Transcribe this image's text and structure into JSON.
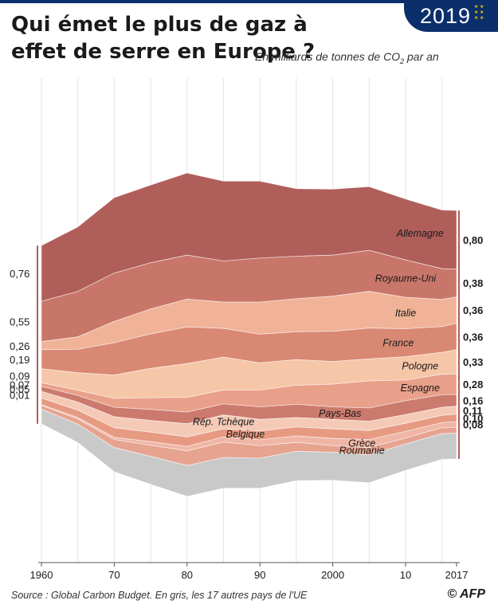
{
  "badge": {
    "year": "2019"
  },
  "header": {
    "title": "Qui émet le plus de gaz à effet de serre en Europe ?",
    "subtitle_prefix": "En milliards de tonnes de CO",
    "subtitle_sub": "2",
    "subtitle_suffix": " par an"
  },
  "footer": {
    "source": "Source : Global Carbon Budget. En gris, les 17 autres pays de l'UE",
    "credit": "© AFP"
  },
  "colors": {
    "Allemagne": "#b05e5a",
    "Royaume-Uni": "#c9766a",
    "Italie": "#f0b398",
    "France": "#d98873",
    "Pologne": "#f6c6a8",
    "Espagne": "#e9a08a",
    "Pays-Bas": "#cc7a6e",
    "Rép. Tchèque": "#f4cab7",
    "Belgique": "#e79a82",
    "Grèce": "#efb6a6",
    "Roumanie": "#e6a38f",
    "others": "#c9c9c9"
  },
  "chart_data": {
    "type": "area",
    "subtype": "streamgraph",
    "unit": "En milliards de tonnes de CO2 par an",
    "x_ticks": [
      "1960",
      "70",
      "80",
      "90",
      "2000",
      "10",
      "2017"
    ],
    "x_range": [
      1960,
      2017
    ],
    "years": [
      1960,
      1965,
      1970,
      1975,
      1980,
      1985,
      1990,
      1995,
      2000,
      2005,
      2010,
      2015,
      2017
    ],
    "series": [
      {
        "name": "Allemagne",
        "values": [
          0.76,
          0.88,
          1.03,
          1.06,
          1.12,
          1.09,
          1.05,
          0.92,
          0.9,
          0.87,
          0.83,
          0.8,
          0.8
        ]
      },
      {
        "name": "Royaume-Uni",
        "values": [
          0.55,
          0.62,
          0.66,
          0.63,
          0.6,
          0.56,
          0.6,
          0.58,
          0.56,
          0.56,
          0.51,
          0.42,
          0.38
        ]
      },
      {
        "name": "Italie",
        "values": [
          0.11,
          0.17,
          0.29,
          0.34,
          0.38,
          0.36,
          0.44,
          0.45,
          0.48,
          0.5,
          0.43,
          0.37,
          0.36
        ]
      },
      {
        "name": "France",
        "values": [
          0.26,
          0.32,
          0.44,
          0.47,
          0.5,
          0.39,
          0.39,
          0.38,
          0.41,
          0.42,
          0.38,
          0.35,
          0.36
        ]
      },
      {
        "name": "Pologne",
        "values": [
          0.19,
          0.24,
          0.32,
          0.4,
          0.46,
          0.45,
          0.37,
          0.35,
          0.31,
          0.3,
          0.32,
          0.3,
          0.33
        ]
      },
      {
        "name": "Espagne",
        "values": [
          0.05,
          0.07,
          0.12,
          0.16,
          0.2,
          0.19,
          0.23,
          0.26,
          0.31,
          0.37,
          0.28,
          0.28,
          0.28
        ]
      },
      {
        "name": "Pays-Bas",
        "values": [
          0.07,
          0.09,
          0.13,
          0.15,
          0.16,
          0.15,
          0.17,
          0.18,
          0.17,
          0.18,
          0.19,
          0.17,
          0.16
        ]
      },
      {
        "name": "Rép. Tchèque",
        "values": [
          0.09,
          0.11,
          0.15,
          0.16,
          0.18,
          0.19,
          0.16,
          0.13,
          0.13,
          0.13,
          0.12,
          0.11,
          0.11
        ]
      },
      {
        "name": "Belgique",
        "values": [
          0.09,
          0.1,
          0.13,
          0.13,
          0.13,
          0.11,
          0.12,
          0.12,
          0.13,
          0.12,
          0.11,
          0.1,
          0.1
        ]
      },
      {
        "name": "Grèce",
        "values": [
          0.01,
          0.02,
          0.03,
          0.05,
          0.06,
          0.07,
          0.08,
          0.09,
          0.1,
          0.11,
          0.09,
          0.07,
          0.08
        ]
      },
      {
        "name": "Roumanie",
        "values": [
          0.05,
          0.07,
          0.11,
          0.15,
          0.2,
          0.21,
          0.17,
          0.12,
          0.09,
          0.1,
          0.08,
          0.08,
          0.08
        ]
      },
      {
        "name": "others",
        "values": [
          0.2,
          0.25,
          0.33,
          0.38,
          0.42,
          0.42,
          0.41,
          0.4,
          0.38,
          0.38,
          0.36,
          0.35,
          0.35
        ]
      }
    ],
    "labels_1960": [
      "0,76",
      "0,55",
      "0,26",
      "0,19",
      "0,09",
      "0,07",
      "0,05",
      "0,01"
    ],
    "labels_2017": [
      "0,80",
      "0,38",
      "0,36",
      "0,36",
      "0,33",
      "0,28",
      "0,16",
      "0,11",
      "0,10",
      "0,08"
    ]
  }
}
